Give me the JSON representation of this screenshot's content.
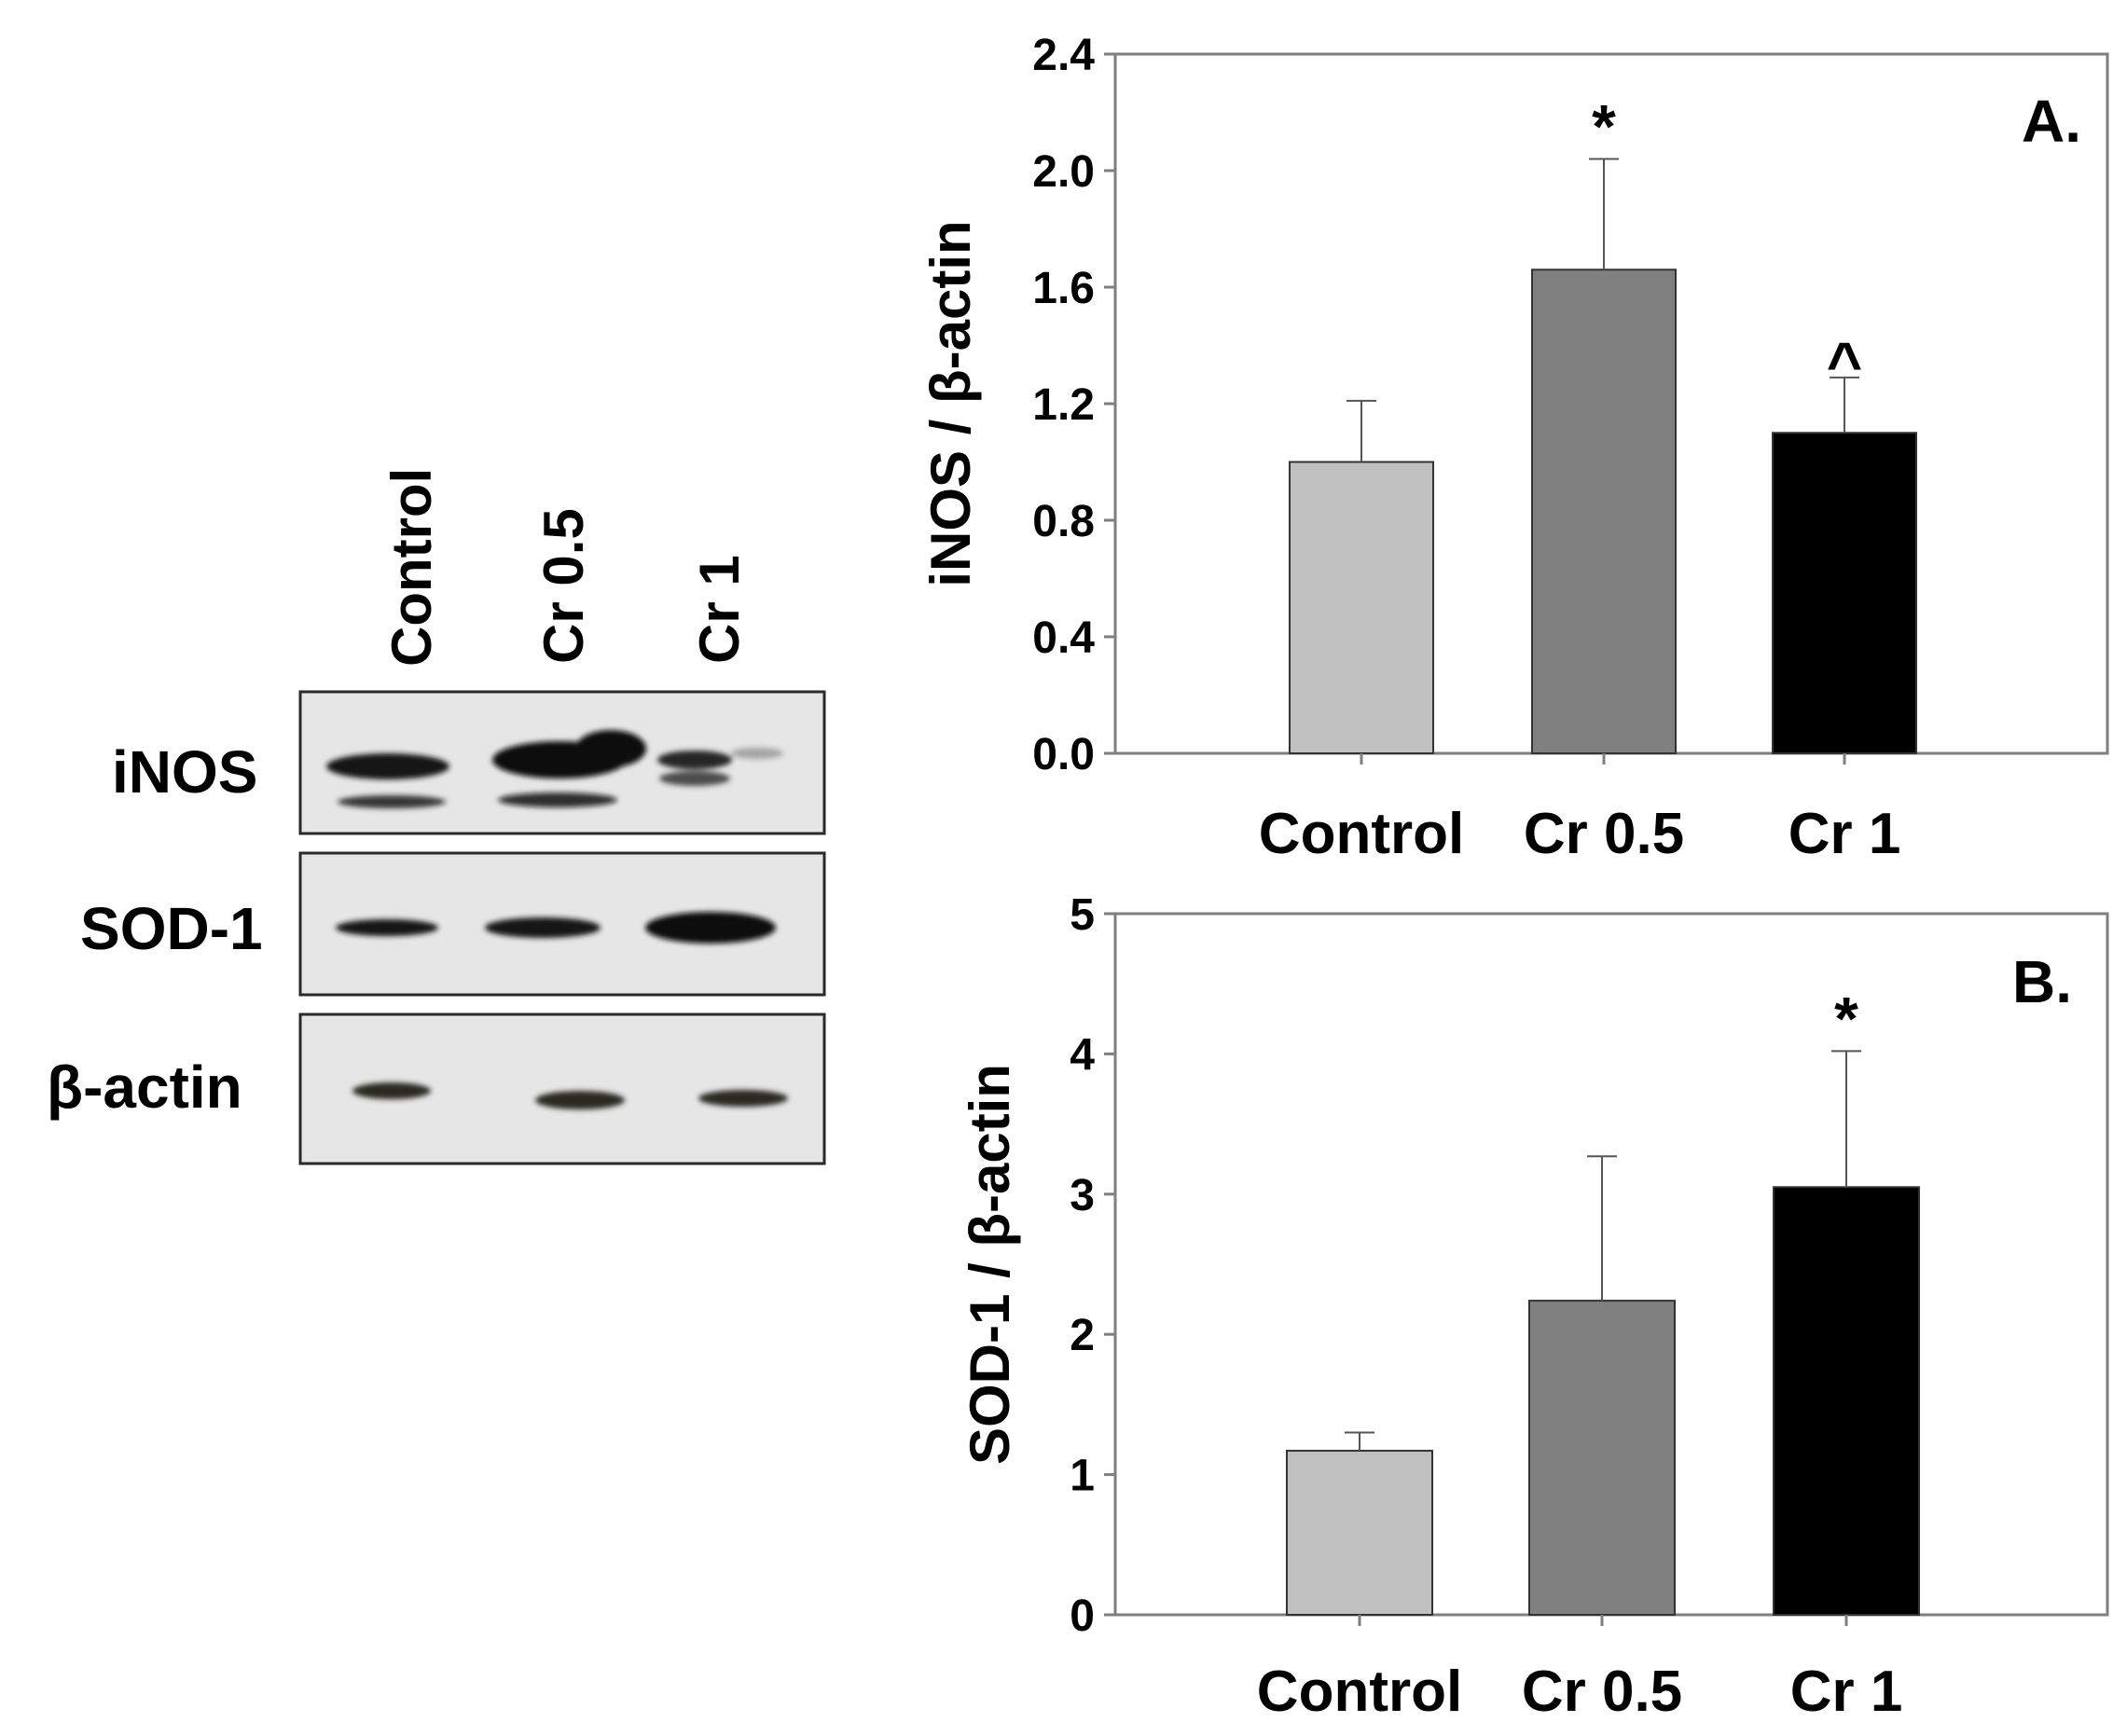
{
  "colors": {
    "control": "#c0c0c0",
    "cr05": "#808080",
    "cr1": "#000000",
    "membrane": "#e6e6e6",
    "band": "#151515",
    "axis": "#7f7f7f"
  },
  "blot": {
    "lanes": [
      "Control",
      "Cr 0.5",
      "Cr 1"
    ],
    "rows": [
      {
        "label": "iNOS"
      },
      {
        "label": "SOD-1"
      },
      {
        "label": "β-actin"
      }
    ]
  },
  "chart_data": [
    {
      "type": "bar",
      "panel": "A.",
      "categories": [
        "Control",
        "Cr 0.5",
        "Cr 1"
      ],
      "values": [
        1.0,
        1.66,
        1.1
      ],
      "errors": [
        0.21,
        0.38,
        0.19
      ],
      "significance": [
        "",
        "*",
        "^"
      ],
      "ylabel": "iNOS / β-actin",
      "ylim": [
        0,
        2.4
      ],
      "yticks": [
        "0.0",
        "0.4",
        "0.8",
        "1.2",
        "1.6",
        "2.0",
        "2.4"
      ],
      "grid": false,
      "series_colors": [
        "#c0c0c0",
        "#808080",
        "#000000"
      ]
    },
    {
      "type": "bar",
      "panel": "B.",
      "categories": [
        "Control",
        "Cr 0.5",
        "Cr 1"
      ],
      "values": [
        1.17,
        2.24,
        3.05
      ],
      "errors": [
        0.13,
        1.03,
        0.97
      ],
      "significance": [
        "",
        "",
        "*"
      ],
      "ylabel": "SOD-1 / β-actin",
      "ylim": [
        0,
        5
      ],
      "yticks": [
        "0",
        "1",
        "2",
        "3",
        "4",
        "5"
      ],
      "grid": false,
      "series_colors": [
        "#c0c0c0",
        "#808080",
        "#000000"
      ]
    }
  ]
}
